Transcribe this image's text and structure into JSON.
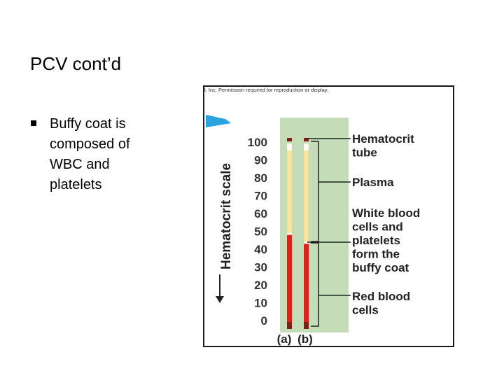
{
  "slide": {
    "title": "PCV cont’d",
    "bullets": [
      {
        "text": "Buffy coat is composed of WBC and platelets"
      }
    ]
  },
  "figure": {
    "copyright": "l, Inc. Permission required for reproduction or display.",
    "scale_title": "Hematocrit scale",
    "scale_ticks": [
      "100",
      "90",
      "80",
      "70",
      "60",
      "50",
      "40",
      "30",
      "20",
      "10",
      "0"
    ],
    "tubes": [
      {
        "label": "(a)",
        "hematocrit": 48
      },
      {
        "label": "(b)",
        "hematocrit": 43
      }
    ],
    "labels": {
      "tube": [
        "Hematocrit",
        "tube"
      ],
      "plasma": [
        "Plasma"
      ],
      "buffy": [
        "White blood",
        "cells and",
        "platelets",
        "form the",
        "buffy coat"
      ],
      "rbc": [
        "Red blood",
        "cells"
      ]
    },
    "colors": {
      "plasma": "#f5e5a0",
      "red_cells": "#d9231b",
      "tube_panel": "#c4ddb8",
      "flag": "#2aa3e0",
      "leader": "#222222",
      "tube_cap": "#7a2418"
    }
  }
}
